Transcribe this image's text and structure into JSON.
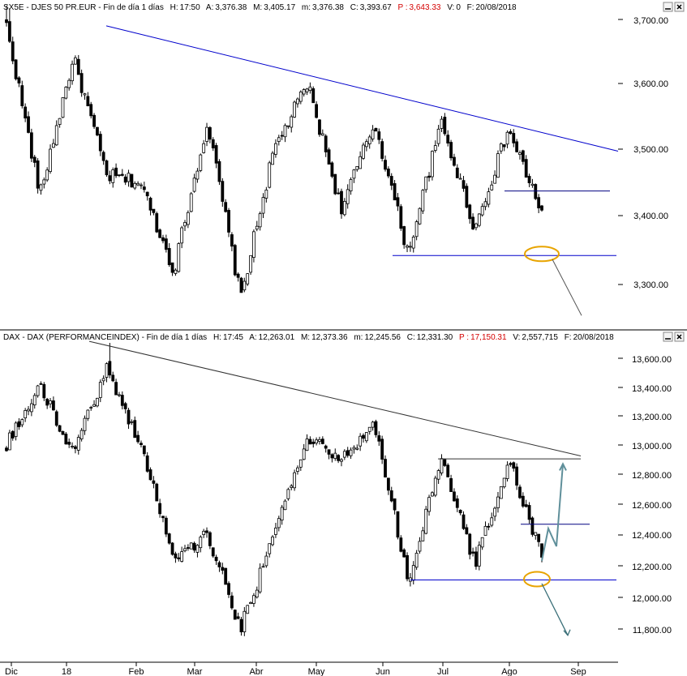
{
  "chart_data": [
    {
      "type": "candlestick",
      "header": {
        "symbol": "SX5E - DJES 50 PR.EUR - Fin de día 1 días",
        "fields": [
          {
            "label": "H:",
            "value": "17:50"
          },
          {
            "label": "A:",
            "value": "3,376.38"
          },
          {
            "label": "M:",
            "value": "3,405.17"
          },
          {
            "label": "m:",
            "value": "3,376.38"
          },
          {
            "label": "C:",
            "value": "3,393.67"
          },
          {
            "label": "P :",
            "value": "3,643.33",
            "color": "#d40000"
          },
          {
            "label": "V:",
            "value": "0"
          },
          {
            "label": "F:",
            "value": "20/08/2018"
          }
        ]
      },
      "y_ticks": [
        "3,700.00",
        "3,600.00",
        "3,500.00",
        "3,400.00",
        "3,300.00"
      ],
      "y_tick_values": [
        3700,
        3600,
        3500,
        3400,
        3300
      ],
      "ylim": [
        3245,
        3725
      ],
      "grid": false,
      "key_points": [
        3690,
        3430,
        3640,
        3460,
        3450,
        3320,
        3540,
        3280,
        3500,
        3600,
        3410,
        3540,
        3345,
        3540,
        3380,
        3530,
        3405
      ],
      "trendline": {
        "from": [
          "Dic 28",
          3690
        ],
        "to": [
          "Sep 12",
          3497
        ],
        "color": "#0000cc"
      },
      "support": {
        "level": 3342,
        "color": "#0000cc"
      },
      "resistance": {
        "level": 3437,
        "color": "#000080"
      },
      "projection": {
        "to": 3255,
        "color": "#555555"
      }
    },
    {
      "type": "candlestick",
      "header": {
        "symbol": "DAX - DAX (PERFORMANCEINDEX) - Fin de día 1 días",
        "fields": [
          {
            "label": "H:",
            "value": "17:45"
          },
          {
            "label": "A:",
            "value": "12,263.01"
          },
          {
            "label": "M:",
            "value": "12,373.36"
          },
          {
            "label": "m:",
            "value": "12,245.56"
          },
          {
            "label": "C:",
            "value": "12,331.30"
          },
          {
            "label": "P :",
            "value": "17,150.31",
            "color": "#d40000"
          },
          {
            "label": "V:",
            "value": "2,557,715"
          },
          {
            "label": "F:",
            "value": "20/08/2018"
          }
        ]
      },
      "y_ticks": [
        "13,600.00",
        "13,400.00",
        "13,200.00",
        "13,000.00",
        "12,800.00",
        "12,600.00",
        "12,400.00",
        "12,200.00",
        "12,000.00",
        "11,800.00"
      ],
      "y_tick_values": [
        13600,
        13400,
        13200,
        13000,
        12800,
        12600,
        12400,
        12200,
        12000,
        11800
      ],
      "ylim": [
        11640,
        13700
      ],
      "grid": false,
      "key_points": [
        13000,
        13400,
        12950,
        13530,
        13000,
        12250,
        12400,
        11800,
        12400,
        13050,
        12900,
        13150,
        12100,
        12900,
        12200,
        12900,
        12250
      ],
      "trendline": {
        "from": [
          "Dic 28",
          13620
        ],
        "to": [
          "Sep 12",
          12925
        ],
        "color": "#333333"
      },
      "top_line": {
        "level": 12905,
        "color": "#333333"
      },
      "support": {
        "level": 12110,
        "color": "#0000cc"
      },
      "resistance": {
        "level": 12470,
        "color": "#000080"
      },
      "projection_up": {
        "to": 12870,
        "color": "#5f8f9a"
      },
      "projection_down": {
        "to": 11760,
        "color": "#3a6f78"
      }
    }
  ],
  "x_ticks": [
    "Dic",
    "18",
    "Feb",
    "Mar",
    "Abr",
    "May",
    "Jun",
    "Jul",
    "Ago",
    "Sep"
  ],
  "colors": {
    "up": "#ffffff",
    "down": "#000000",
    "highlight_ellipse": "#e8a400"
  }
}
